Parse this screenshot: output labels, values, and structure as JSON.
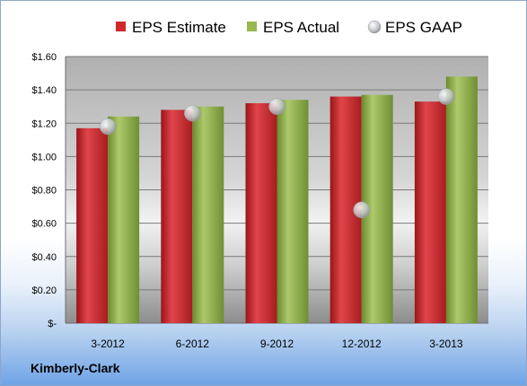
{
  "company": "Kimberly-Clark",
  "chart_data": {
    "type": "bar",
    "categories": [
      "3-2012",
      "6-2012",
      "9-2012",
      "12-2012",
      "3-2013"
    ],
    "series": [
      {
        "name": "EPS Estimate",
        "type": "bar",
        "color": "#c0282d",
        "values": [
          1.17,
          1.28,
          1.32,
          1.36,
          1.33
        ]
      },
      {
        "name": "EPS Actual",
        "type": "bar",
        "color": "#8fb04a",
        "values": [
          1.24,
          1.3,
          1.34,
          1.37,
          1.48
        ]
      },
      {
        "name": "EPS GAAP",
        "type": "scatter",
        "color": "#b8bcc2",
        "values": [
          1.18,
          1.26,
          1.3,
          0.68,
          1.36
        ]
      }
    ],
    "ylim": [
      0,
      1.6
    ],
    "yticks": [
      0,
      0.2,
      0.4,
      0.6,
      0.8,
      1.0,
      1.2,
      1.4,
      1.6
    ],
    "ytick_labels": [
      "$-",
      "$0.20",
      "$0.40",
      "$0.60",
      "$0.80",
      "$1.00",
      "$1.20",
      "$1.40",
      "$1.60"
    ],
    "grid": true,
    "legend": "top"
  }
}
